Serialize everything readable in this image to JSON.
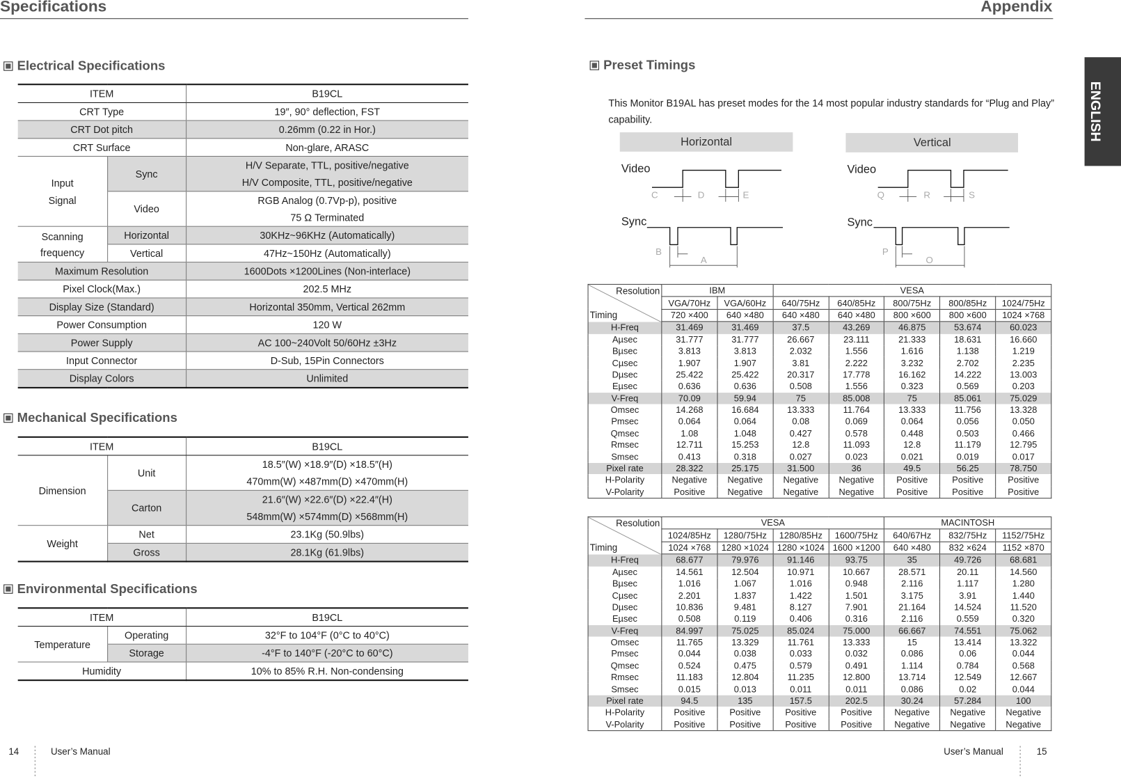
{
  "left_page": {
    "header": "Specifications",
    "electrical": {
      "title": "Electrical Specifications",
      "head": [
        "ITEM",
        "B19CL"
      ],
      "rows": [
        {
          "item": "CRT Type",
          "value": "19″, 90° deflection, FST"
        },
        {
          "item": "CRT Dot pitch",
          "value": "0.26mm (0.22 in Hor.)"
        },
        {
          "item": "CRT Surface",
          "value": "Non-glare, ARASC"
        },
        {
          "item": [
            "Input",
            "Signal"
          ],
          "sub": [
            {
              "item": "Sync",
              "value": [
                "H/V Separate, TTL, positive/negative",
                "H/V Composite, TTL, positive/negative"
              ]
            },
            {
              "item": "Video",
              "value": [
                "RGB Analog (0.7Vp-p), positive",
                "75 Ω Terminated"
              ]
            }
          ]
        },
        {
          "item": [
            "Scanning",
            "frequency"
          ],
          "sub": [
            {
              "item": "Horizontal",
              "value": "30KHz~96KHz (Automatically)"
            },
            {
              "item": "Vertical",
              "value": "47Hz~150Hz (Automatically)"
            }
          ]
        },
        {
          "item": "Maximum Resolution",
          "value": "1600Dots ×1200Lines (Non-interlace)"
        },
        {
          "item": "Pixel Clock(Max.)",
          "value": "202.5 MHz"
        },
        {
          "item": "Display Size (Standard)",
          "value": "Horizontal 350mm, Vertical 262mm"
        },
        {
          "item": "Power Consumption",
          "value": "120 W"
        },
        {
          "item": "Power Supply",
          "value": "AC 100~240Volt 50/60Hz ±3Hz"
        },
        {
          "item": "Input Connector",
          "value": "D-Sub, 15Pin Connectors"
        },
        {
          "item": "Display Colors",
          "value": "Unlimited"
        }
      ]
    },
    "mechanical": {
      "title": "Mechanical Specifications",
      "head": [
        "ITEM",
        "B19CL"
      ],
      "rows": [
        {
          "item": "Dimension",
          "sub": [
            {
              "item": "Unit",
              "value": [
                "18.5″(W) ×18.9″(D) ×18.5″(H)",
                "470mm(W) ×487mm(D) ×470mm(H)"
              ]
            },
            {
              "item": "Carton",
              "value": [
                "21.6″(W) ×22.6″(D) ×22.4″(H)",
                "548mm(W) ×574mm(D) ×568mm(H)"
              ]
            }
          ]
        },
        {
          "item": "Weight",
          "sub": [
            {
              "item": "Net",
              "value": "23.1Kg (50.9lbs)"
            },
            {
              "item": "Gross",
              "value": "28.1Kg (61.9lbs)"
            }
          ]
        }
      ]
    },
    "environmental": {
      "title": "Environmental Specifications",
      "head": [
        "ITEM",
        "B19CL"
      ],
      "rows": [
        {
          "item": "Temperature",
          "sub": [
            {
              "item": "Operating",
              "value": "32°F to 104°F (0°C to 40°C)"
            },
            {
              "item": "Storage",
              "value": "-4°F to 140°F (-20°C to 60°C)"
            }
          ]
        },
        {
          "item": "Humidity",
          "value": "10% to 85% R.H. Non-condensing"
        }
      ]
    },
    "footer": {
      "page": "14",
      "label": "User’s Manual"
    }
  },
  "right_page": {
    "header": "Appendix",
    "tab": "ENGLISH",
    "preset": {
      "title": "Preset Timings",
      "intro": "This Monitor B19AL has preset modes for the 14 most popular industry standards for “Plug and Play” capability.",
      "diagram": {
        "horizontal": {
          "title": "Horizontal",
          "video": "Video",
          "sync": "Sync",
          "video_marks": [
            "C",
            "D",
            "E"
          ],
          "sync_marks": [
            "B",
            "A"
          ]
        },
        "vertical": {
          "title": "Vertical",
          "video": "Video",
          "sync": "Sync",
          "video_marks": [
            "Q",
            "R",
            "S"
          ],
          "sync_marks": [
            "P",
            "O"
          ]
        }
      },
      "tables": [
        {
          "corner_top": "Resolution",
          "corner_bottom": "Timing",
          "groups": [
            {
              "name": "IBM",
              "modes": [
                {
                  "mode": "VGA/70Hz",
                  "resolution": "720 ×400"
                },
                {
                  "mode": "VGA/60Hz",
                  "resolution": "640 ×480"
                }
              ]
            },
            {
              "name": "VESA",
              "modes": [
                {
                  "mode": "640/75Hz",
                  "resolution": "640 ×480"
                },
                {
                  "mode": "640/85Hz",
                  "resolution": "640 ×480"
                },
                {
                  "mode": "800/75Hz",
                  "resolution": "800 ×600"
                },
                {
                  "mode": "800/85Hz",
                  "resolution": "800 ×600"
                },
                {
                  "mode": "1024/75Hz",
                  "resolution": "1024 ×768"
                }
              ]
            }
          ],
          "rows": [
            {
              "label": "H-Freq",
              "values": [
                "31.469",
                "31.469",
                "37.5",
                "43.269",
                "46.875",
                "53.674",
                "60.023"
              ]
            },
            {
              "label": "Aµsec",
              "values": [
                "31.777",
                "31.777",
                "26.667",
                "23.111",
                "21.333",
                "18.631",
                "16.660"
              ]
            },
            {
              "label": "Bµsec",
              "values": [
                "3.813",
                "3.813",
                "2.032",
                "1.556",
                "1.616",
                "1.138",
                "1.219"
              ]
            },
            {
              "label": "Cµsec",
              "values": [
                "1.907",
                "1.907",
                "3.81",
                "2.222",
                "3.232",
                "2.702",
                "2.235"
              ]
            },
            {
              "label": "Dµsec",
              "values": [
                "25.422",
                "25.422",
                "20.317",
                "17.778",
                "16.162",
                "14.222",
                "13.003"
              ]
            },
            {
              "label": "Eµsec",
              "values": [
                "0.636",
                "0.636",
                "0.508",
                "1.556",
                "0.323",
                "0.569",
                "0.203"
              ]
            },
            {
              "label": "V-Freq",
              "values": [
                "70.09",
                "59.94",
                "75",
                "85.008",
                "75",
                "85.061",
                "75.029"
              ]
            },
            {
              "label": "Omsec",
              "values": [
                "14.268",
                "16.684",
                "13.333",
                "11.764",
                "13.333",
                "11.756",
                "13.328"
              ]
            },
            {
              "label": "Pmsec",
              "values": [
                "0.064",
                "0.064",
                "0.08",
                "0.069",
                "0.064",
                "0.056",
                "0.050"
              ]
            },
            {
              "label": "Qmsec",
              "values": [
                "1.08",
                "1.048",
                "0.427",
                "0.578",
                "0.448",
                "0.503",
                "0.466"
              ]
            },
            {
              "label": "Rmsec",
              "values": [
                "12.711",
                "15.253",
                "12.8",
                "11.093",
                "12.8",
                "11.179",
                "12.795"
              ]
            },
            {
              "label": "Smsec",
              "values": [
                "0.413",
                "0.318",
                "0.027",
                "0.023",
                "0.021",
                "0.019",
                "0.017"
              ]
            },
            {
              "label": "Pixel rate",
              "values": [
                "28.322",
                "25.175",
                "31.500",
                "36",
                "49.5",
                "56.25",
                "78.750"
              ]
            },
            {
              "label": "H-Polarity",
              "values": [
                "Negative",
                "Negative",
                "Negative",
                "Negative",
                "Positive",
                "Positive",
                "Positive"
              ]
            },
            {
              "label": "V-Polarity",
              "values": [
                "Positive",
                "Negative",
                "Negative",
                "Negative",
                "Positive",
                "Positive",
                "Positive"
              ]
            }
          ]
        },
        {
          "corner_top": "Resolution",
          "corner_bottom": "Timing",
          "groups": [
            {
              "name": "VESA",
              "modes": [
                {
                  "mode": "1024/85Hz",
                  "resolution": "1024 ×768"
                },
                {
                  "mode": "1280/75Hz",
                  "resolution": "1280 ×1024"
                },
                {
                  "mode": "1280/85Hz",
                  "resolution": "1280 ×1024"
                },
                {
                  "mode": "1600/75Hz",
                  "resolution": "1600 ×1200"
                }
              ]
            },
            {
              "name": "MACINTOSH",
              "modes": [
                {
                  "mode": "640/67Hz",
                  "resolution": "640 ×480"
                },
                {
                  "mode": "832/75Hz",
                  "resolution": "832 ×624"
                },
                {
                  "mode": "1152/75Hz",
                  "resolution": "1152 ×870"
                }
              ]
            }
          ],
          "rows": [
            {
              "label": "H-Freq",
              "values": [
                "68.677",
                "79.976",
                "91.146",
                "93.75",
                "35",
                "49.726",
                "68.681"
              ]
            },
            {
              "label": "Aµsec",
              "values": [
                "14.561",
                "12.504",
                "10.971",
                "10.667",
                "28.571",
                "20.11",
                "14.560"
              ]
            },
            {
              "label": "Bµsec",
              "values": [
                "1.016",
                "1.067",
                "1.016",
                "0.948",
                "2.116",
                "1.117",
                "1.280"
              ]
            },
            {
              "label": "Cµsec",
              "values": [
                "2.201",
                "1.837",
                "1.422",
                "1.501",
                "3.175",
                "3.91",
                "1.440"
              ]
            },
            {
              "label": "Dµsec",
              "values": [
                "10.836",
                "9.481",
                "8.127",
                "7.901",
                "21.164",
                "14.524",
                "11.520"
              ]
            },
            {
              "label": "Eµsec",
              "values": [
                "0.508",
                "0.119",
                "0.406",
                "0.316",
                "2.116",
                "0.559",
                "0.320"
              ]
            },
            {
              "label": "V-Freq",
              "values": [
                "84.997",
                "75.025",
                "85.024",
                "75.000",
                "66.667",
                "74.551",
                "75.062"
              ]
            },
            {
              "label": "Omsec",
              "values": [
                "11.765",
                "13.329",
                "11.761",
                "13.333",
                "15",
                "13.414",
                "13.322"
              ]
            },
            {
              "label": "Pmsec",
              "values": [
                "0.044",
                "0.038",
                "0.033",
                "0.032",
                "0.086",
                "0.06",
                "0.044"
              ]
            },
            {
              "label": "Qmsec",
              "values": [
                "0.524",
                "0.475",
                "0.579",
                "0.491",
                "1.114",
                "0.784",
                "0.568"
              ]
            },
            {
              "label": "Rmsec",
              "values": [
                "11.183",
                "12.804",
                "11.235",
                "12.800",
                "13.714",
                "12.549",
                "12.667"
              ]
            },
            {
              "label": "Smsec",
              "values": [
                "0.015",
                "0.013",
                "0.011",
                "0.011",
                "0.086",
                "0.02",
                "0.044"
              ]
            },
            {
              "label": "Pixel rate",
              "values": [
                "94.5",
                "135",
                "157.5",
                "202.5",
                "30.24",
                "57.284",
                "100"
              ]
            },
            {
              "label": "H-Polarity",
              "values": [
                "Positive",
                "Positive",
                "Positive",
                "Positive",
                "Negative",
                "Negative",
                "Negative"
              ]
            },
            {
              "label": "V-Polarity",
              "values": [
                "Positive",
                "Positive",
                "Positive",
                "Positive",
                "Negative",
                "Negative",
                "Negative"
              ]
            }
          ]
        }
      ]
    },
    "footer": {
      "label": "User’s Manual",
      "page": "15"
    }
  }
}
